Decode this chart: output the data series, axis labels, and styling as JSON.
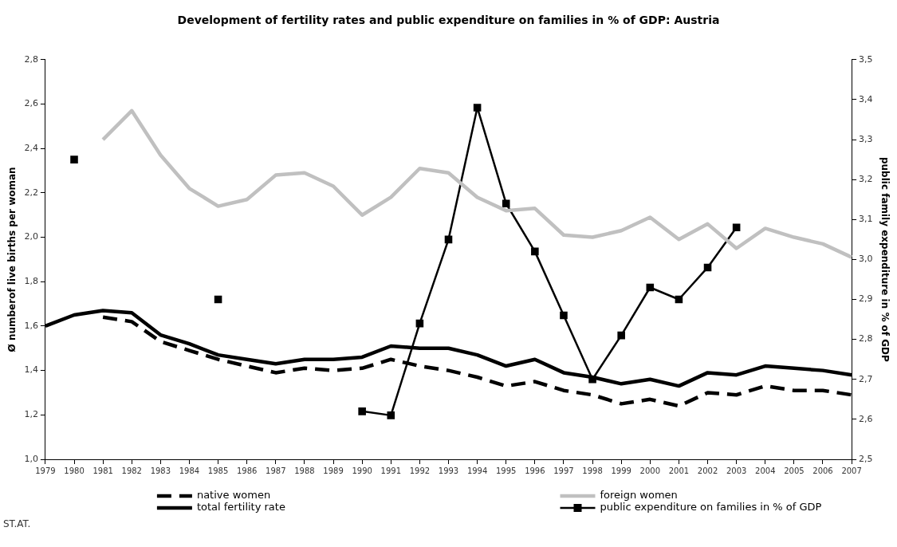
{
  "chart_data": {
    "type": "line",
    "title": "Development of fertility rates and public expenditure on families in % of GDP: Austria",
    "ylabel": "Ø numberof live births per woman",
    "y2label": "public family expenditure in % of GDP",
    "categories": [
      "1979",
      "1980",
      "1981",
      "1982",
      "1983",
      "1984",
      "1985",
      "1986",
      "1987",
      "1988",
      "1989",
      "1990",
      "1991",
      "1992",
      "1993",
      "1994",
      "1995",
      "1996",
      "1997",
      "1998",
      "1999",
      "2000",
      "2001",
      "2002",
      "2003",
      "2004",
      "2005",
      "2006",
      "2007"
    ],
    "series": [
      {
        "name": "native women",
        "color": "#000000",
        "line_style": "dashed",
        "marker": "none",
        "values": [
          null,
          null,
          1.64,
          1.62,
          1.53,
          1.49,
          1.45,
          1.42,
          1.39,
          1.41,
          1.4,
          1.41,
          1.45,
          1.42,
          1.4,
          1.37,
          1.33,
          1.35,
          1.31,
          1.29,
          1.25,
          1.27,
          1.24,
          1.3,
          1.29,
          1.33,
          1.31,
          1.31,
          1.29
        ]
      },
      {
        "name": "foreign women",
        "color": "#c0c0c0",
        "line_style": "solid",
        "marker": "none",
        "values": [
          null,
          null,
          2.44,
          2.57,
          2.37,
          2.22,
          2.14,
          2.17,
          2.28,
          2.29,
          2.23,
          2.1,
          2.18,
          2.31,
          2.29,
          2.18,
          2.12,
          2.13,
          2.01,
          2.0,
          2.03,
          2.09,
          1.99,
          2.06,
          1.95,
          2.04,
          2.0,
          1.97,
          1.91
        ]
      },
      {
        "name": "total fertility rate",
        "color": "#000000",
        "line_style": "solid",
        "marker": "none",
        "values": [
          1.6,
          1.65,
          1.67,
          1.66,
          1.56,
          1.52,
          1.47,
          1.45,
          1.43,
          1.45,
          1.45,
          1.46,
          1.51,
          1.5,
          1.5,
          1.47,
          1.42,
          1.45,
          1.39,
          1.37,
          1.34,
          1.36,
          1.33,
          1.39,
          1.38,
          1.42,
          1.41,
          1.4,
          1.38
        ]
      },
      {
        "name": "public expenditure on families in % of GDP",
        "color": "#000000",
        "line_style": "solid",
        "marker": "square",
        "axis": "y2",
        "values": [
          null,
          3.25,
          null,
          null,
          null,
          null,
          2.9,
          null,
          null,
          null,
          null,
          2.62,
          2.61,
          2.84,
          3.05,
          3.38,
          3.14,
          3.02,
          2.86,
          2.7,
          2.81,
          2.93,
          2.9,
          2.98,
          3.08,
          null,
          null,
          null,
          null
        ]
      }
    ],
    "ylim": [
      1.0,
      2.8
    ],
    "yticks": [
      {
        "value": 1.0,
        "label": "1,0"
      },
      {
        "value": 1.2,
        "label": "1,2"
      },
      {
        "value": 1.4,
        "label": "1,4"
      },
      {
        "value": 1.6,
        "label": "1,6"
      },
      {
        "value": 1.8,
        "label": "1,8"
      },
      {
        "value": 2.0,
        "label": "2,0"
      },
      {
        "value": 2.2,
        "label": "2,2"
      },
      {
        "value": 2.4,
        "label": "2,4"
      },
      {
        "value": 2.6,
        "label": "2,6"
      },
      {
        "value": 2.8,
        "label": "2,8"
      }
    ],
    "y2lim": [
      2.5,
      3.5
    ],
    "y2ticks": [
      {
        "value": 2.5,
        "label": "2,5"
      },
      {
        "value": 2.6,
        "label": "2,6"
      },
      {
        "value": 2.7,
        "label": "2,7"
      },
      {
        "value": 2.8,
        "label": "2,8"
      },
      {
        "value": 2.9,
        "label": "2,9"
      },
      {
        "value": 3.0,
        "label": "3,0"
      },
      {
        "value": 3.1,
        "label": "3,1"
      },
      {
        "value": 3.2,
        "label": "3,2"
      },
      {
        "value": 3.3,
        "label": "3,3"
      },
      {
        "value": 3.4,
        "label": "3,4"
      },
      {
        "value": 3.5,
        "label": "3,5"
      }
    ],
    "grid": false,
    "legend": "bottom",
    "annotations": [
      "ST.AT."
    ]
  }
}
